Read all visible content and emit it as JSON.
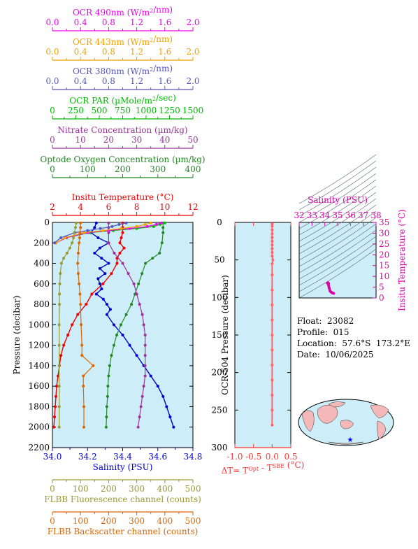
{
  "colors": {
    "ocr490": "#ee00ee",
    "ocr443": "#f0a000",
    "ocr380": "#5555bb",
    "par": "#00bb00",
    "nitrate": "#993399",
    "oxygen": "#228822",
    "temperature": "#ee0000",
    "salinity": "#0000cc",
    "fluorescence": "#999933",
    "backscatter": "#dd6600",
    "panel_bg": "#cdeef8",
    "dt": "#ff6666",
    "ts": "#dd00aa",
    "land": "#f4b8b8",
    "float_marker": "#0000ff"
  },
  "axes_top": [
    {
      "key": "ocr490",
      "title": "OCR 490nm (W/m²/nm)",
      "ticks": [
        "0.0",
        "0.4",
        "0.8",
        "1.2",
        "1.6",
        "2.0"
      ]
    },
    {
      "key": "ocr443",
      "title": "OCR 443nm (W/m²/nm)",
      "ticks": [
        "0.0",
        "0.4",
        "0.8",
        "1.2",
        "1.6",
        "2.0"
      ]
    },
    {
      "key": "ocr380",
      "title": "OCR 380nm (W/m²/nm)",
      "ticks": [
        "0.0",
        "0.4",
        "0.8",
        "1.2",
        "1.6",
        "2.0"
      ]
    },
    {
      "key": "par",
      "title": "OCR PAR (µMole/m²/sec)",
      "ticks": [
        "0",
        "250",
        "500",
        "750",
        "1000",
        "1250",
        "1500"
      ]
    },
    {
      "key": "nitrate",
      "title": "Nitrate Concentration (µm/kg)",
      "ticks": [
        "0",
        "10",
        "20",
        "30",
        "40",
        "50"
      ]
    },
    {
      "key": "oxygen",
      "title": "Optode Oxygen Concentration (µm/kg)",
      "ticks": [
        "0",
        "100",
        "200",
        "300",
        "400"
      ]
    },
    {
      "key": "temperature",
      "title": "Insitu Temperature (°C)",
      "ticks": [
        "2",
        "4",
        "6",
        "8",
        "10",
        "12"
      ]
    }
  ],
  "axes_bottom": [
    {
      "key": "salinity",
      "title": "Salinity (PSU)",
      "ticks": [
        "34.0",
        "34.2",
        "34.4",
        "34.6",
        "34.8"
      ]
    },
    {
      "key": "fluorescence",
      "title": "FLBB Fluorescence channel (counts)",
      "ticks": [
        "0",
        "100",
        "200",
        "300",
        "400",
        "500"
      ]
    },
    {
      "key": "backscatter",
      "title": "FLBB Backscatter channel (counts)",
      "ticks": [
        "0",
        "100",
        "200",
        "300",
        "400",
        "500"
      ]
    }
  ],
  "main_plot": {
    "ylabel": "Pressure (decibar)",
    "yticks": [
      "0",
      "200",
      "400",
      "600",
      "800",
      "1000",
      "1200",
      "1400",
      "1600",
      "1800",
      "2000",
      "2200"
    ]
  },
  "chart_data": [
    {
      "type": "line",
      "y_name": "Pressure (decibar)",
      "ylim": [
        0,
        2200
      ],
      "y_reversed": true,
      "series": [
        {
          "name": "Insitu Temperature (°C)",
          "key": "temperature",
          "xlim": [
            2,
            12
          ],
          "y": [
            5,
            50,
            100,
            150,
            200,
            250,
            300,
            350,
            400,
            500,
            600,
            700,
            800,
            900,
            1000,
            1100,
            1200,
            1300,
            1400,
            1500,
            1600,
            1700,
            1800,
            1900,
            2000
          ],
          "x": [
            7.0,
            7.0,
            7.0,
            6.9,
            6.8,
            7.1,
            6.8,
            6.6,
            6.6,
            6.2,
            5.6,
            4.8,
            4.4,
            3.8,
            3.4,
            3.1,
            2.8,
            2.6,
            2.5,
            2.4,
            2.3,
            2.25,
            2.2,
            2.15,
            2.1
          ]
        },
        {
          "name": "Salinity (PSU)",
          "key": "salinity",
          "xlim": [
            34.0,
            34.8
          ],
          "y": [
            5,
            50,
            100,
            150,
            200,
            250,
            300,
            350,
            400,
            450,
            500,
            550,
            600,
            650,
            700,
            750,
            800,
            850,
            900,
            1000,
            1100,
            1200,
            1300,
            1400,
            1500,
            1600,
            1700,
            1800,
            1900,
            2000
          ],
          "x": [
            34.25,
            34.24,
            34.22,
            34.26,
            34.32,
            34.27,
            34.24,
            34.28,
            34.32,
            34.27,
            34.3,
            34.26,
            34.27,
            34.28,
            34.25,
            34.29,
            34.31,
            34.33,
            34.31,
            34.35,
            34.4,
            34.44,
            34.48,
            34.52,
            34.56,
            34.6,
            34.63,
            34.65,
            34.67,
            34.69
          ]
        },
        {
          "name": "Optode Oxygen Concentration (µm/kg)",
          "key": "oxygen",
          "xlim": [
            0,
            400
          ],
          "y": [
            5,
            50,
            100,
            200,
            300,
            350,
            400,
            500,
            600,
            700,
            800,
            900,
            1000,
            1100,
            1200,
            1300,
            1400,
            1500,
            1600,
            1700,
            1800,
            1900,
            2000
          ],
          "x": [
            315,
            315,
            315,
            312,
            305,
            285,
            265,
            255,
            245,
            235,
            225,
            210,
            195,
            183,
            175,
            168,
            163,
            160,
            158,
            157,
            155,
            154,
            153
          ]
        },
        {
          "name": "Nitrate Concentration (µm/kg)",
          "key": "nitrate",
          "xlim": [
            0,
            50
          ],
          "y": [
            5,
            50,
            100,
            200,
            300,
            400,
            500,
            600,
            700,
            800,
            900,
            1000,
            1100,
            1200,
            1300,
            1400,
            1500,
            1600,
            1700,
            1800,
            1900,
            2000
          ],
          "x": [
            20,
            20,
            20,
            20,
            22,
            25,
            27,
            29,
            30,
            31,
            32,
            32.5,
            33,
            33,
            33,
            33,
            33,
            32.5,
            32,
            31.5,
            31,
            30.5
          ]
        },
        {
          "name": "OCR PAR (µMole/m²/sec)",
          "key": "par",
          "xlim": [
            0,
            1500
          ],
          "y": [
            5,
            20,
            40,
            60,
            80,
            100,
            150
          ],
          "x": [
            1200,
            1150,
            1080,
            900,
            650,
            400,
            150
          ]
        },
        {
          "name": "OCR 490nm (W/m²/nm)",
          "key": "ocr490",
          "xlim": [
            0,
            2.0
          ],
          "y": [
            5,
            20,
            40,
            60,
            80,
            100,
            150,
            200
          ],
          "x": [
            1.55,
            1.48,
            1.35,
            1.1,
            0.8,
            0.5,
            0.2,
            0.05
          ]
        },
        {
          "name": "OCR 443nm (W/m²/nm)",
          "key": "ocr443",
          "xlim": [
            0,
            2.0
          ],
          "y": [
            5,
            20,
            40,
            60,
            80,
            100,
            150,
            200
          ],
          "x": [
            1.4,
            1.32,
            1.2,
            0.98,
            0.72,
            0.45,
            0.18,
            0.05
          ]
        },
        {
          "name": "OCR 380nm (W/m²/nm)",
          "key": "ocr380",
          "xlim": [
            0,
            2.0
          ],
          "y": [
            5,
            20,
            40,
            60,
            80,
            100,
            150,
            200
          ],
          "x": [
            1.05,
            0.95,
            0.85,
            0.68,
            0.5,
            0.32,
            0.12,
            0.03
          ]
        },
        {
          "name": "FLBB Fluorescence channel (counts)",
          "key": "fluorescence",
          "xlim": [
            0,
            500
          ],
          "y": [
            5,
            50,
            100,
            150,
            200,
            250,
            300,
            350,
            400,
            500,
            600,
            700,
            800,
            1000,
            1200,
            1400,
            1600,
            1800,
            2000
          ],
          "x": [
            85,
            82,
            78,
            75,
            70,
            62,
            52,
            40,
            32,
            28,
            26,
            25,
            25,
            24,
            24,
            24,
            24,
            24,
            24
          ]
        },
        {
          "name": "FLBB Backscatter channel (counts)",
          "key": "backscatter",
          "xlim": [
            0,
            500
          ],
          "y": [
            5,
            50,
            100,
            150,
            200,
            300,
            400,
            500,
            600,
            700,
            800,
            1000,
            1200,
            1300,
            1400,
            1500,
            1600,
            1800,
            2000
          ],
          "x": [
            100,
            100,
            98,
            97,
            95,
            92,
            90,
            92,
            95,
            98,
            100,
            102,
            105,
            105,
            145,
            110,
            110,
            112,
            112
          ]
        }
      ]
    },
    {
      "type": "line",
      "title": "",
      "ylabel": "OCR-504 Pressure (decibar)",
      "xlabel": "ΔT= T^Opt - T^SBE (°C)",
      "xlim": [
        -1.0,
        0.5
      ],
      "ylim": [
        0,
        300
      ],
      "y_reversed": true,
      "xticks": [
        "-1.0",
        "-0.5",
        "0.0",
        "0.5"
      ],
      "yticks": [
        "0",
        "50",
        "100",
        "150",
        "200",
        "250",
        "300"
      ],
      "series": [
        {
          "name": "ΔT",
          "y": [
            2,
            5,
            10,
            15,
            20,
            25,
            30,
            35,
            40,
            45,
            50,
            55,
            70,
            90,
            110,
            130,
            150,
            170,
            190,
            210,
            230,
            250,
            270
          ],
          "x": [
            0.0,
            0.0,
            0.0,
            0.0,
            0.0,
            0.0,
            0.0,
            0.0,
            0.0,
            0.0,
            0.02,
            0.0,
            0.0,
            0.0,
            0.0,
            0.0,
            0.0,
            0.0,
            0.0,
            0.0,
            0.0,
            0.0,
            0.0
          ]
        }
      ]
    },
    {
      "type": "scatter",
      "xlabel": "Salinity (PSU)",
      "ylabel": "Insitu Temperature (°C)",
      "xlim": [
        32,
        38
      ],
      "ylim": [
        0,
        35
      ],
      "xticks": [
        "32",
        "33",
        "34",
        "35",
        "36",
        "37",
        "38"
      ],
      "yticks": [
        "0",
        "5",
        "10",
        "15",
        "20",
        "25",
        "30",
        "35"
      ],
      "series": [
        {
          "name": "T-S",
          "x": [
            34.25,
            34.24,
            34.22,
            34.27,
            34.3,
            34.27,
            34.31,
            34.33,
            34.35,
            34.4,
            34.44,
            34.52,
            34.6,
            34.69
          ],
          "y": [
            7.0,
            7.0,
            6.9,
            6.8,
            6.6,
            6.2,
            5.6,
            4.8,
            4.4,
            3.4,
            3.0,
            2.6,
            2.3,
            2.1
          ]
        }
      ]
    }
  ],
  "ts_title": "Salinity (PSU)",
  "ts_ylabel": "Insitu Temperature (°C)",
  "info": {
    "float": "Float:  23082",
    "profile": "Profile:  015",
    "location": "Location:  57.6°S  173.2°E",
    "date": "Date:  10/06/2025"
  },
  "map": {
    "float_lon": 173.2,
    "float_lat": -57.6
  }
}
